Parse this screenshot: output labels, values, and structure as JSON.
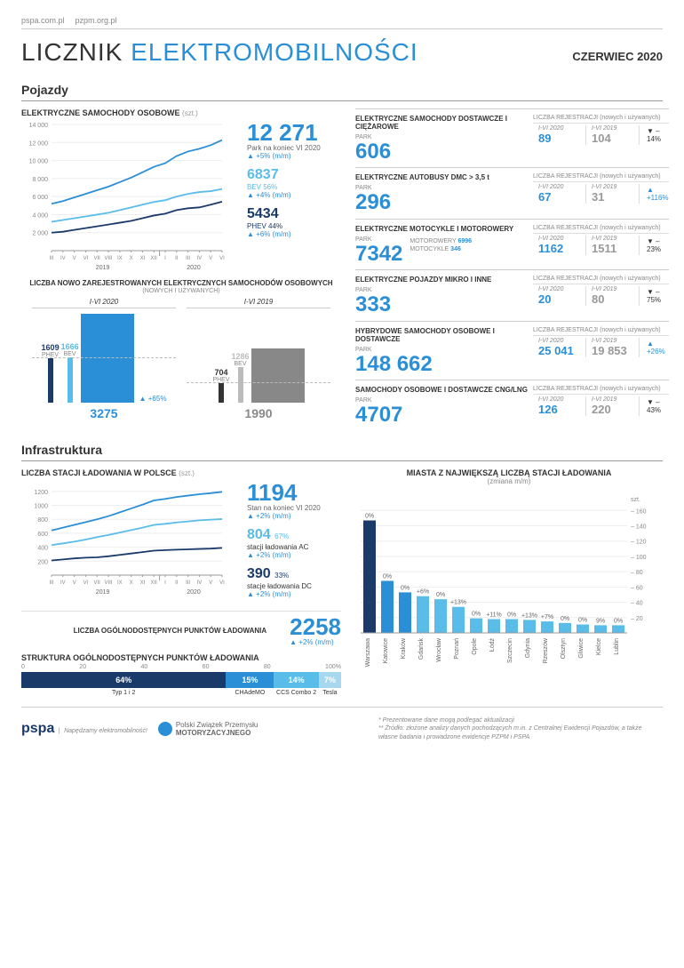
{
  "links": {
    "a": "pspa.com.pl",
    "b": "pzpm.org.pl"
  },
  "title": {
    "a": "LICZNIK",
    "b": "ELEKTROMOBILNOŚCI"
  },
  "date": "CZERWIEC 2020",
  "sec_vehicles": "Pojazdy",
  "sec_infra": "Infrastruktura",
  "pc": {
    "title": "ELEKTRYCZNE SAMOCHODY OSOBOWE",
    "unit": "(szt.)",
    "total": {
      "val": "12 271",
      "sub": "Park na koniec VI 2020",
      "chg": "▲ +5% (m/m)"
    },
    "bev": {
      "val": "6837",
      "sub": "BEV 56%",
      "chg": "▲ +4% (m/m)",
      "color": "#5abce8"
    },
    "phev": {
      "val": "5434",
      "sub": "PHEV 44%",
      "chg": "▲ +6% (m/m)",
      "color": "#1a3a6a"
    },
    "total_color": "#2a8fd6",
    "y_ticks": [
      "14 000",
      "12 000",
      "10 000",
      "8 000",
      "6 000",
      "4 000",
      "2 000"
    ],
    "x_ticks": [
      "III",
      "IV",
      "V",
      "VI",
      "VII",
      "VIII",
      "IX",
      "X",
      "XI",
      "XII",
      "I",
      "II",
      "III",
      "IV",
      "V",
      "VI"
    ],
    "x_years": [
      "2019",
      "2020"
    ],
    "series": {
      "total": [
        5200,
        5500,
        5900,
        6300,
        6700,
        7100,
        7600,
        8100,
        8700,
        9300,
        9700,
        10500,
        11000,
        11300,
        11700,
        12271
      ],
      "bev": [
        3200,
        3400,
        3600,
        3800,
        4000,
        4200,
        4500,
        4800,
        5100,
        5400,
        5600,
        6000,
        6300,
        6500,
        6600,
        6837
      ],
      "phev": [
        2000,
        2100,
        2300,
        2500,
        2700,
        2900,
        3100,
        3300,
        3600,
        3900,
        4100,
        4500,
        4700,
        4800,
        5100,
        5434
      ]
    },
    "y_max": 14000
  },
  "reg": {
    "title": "LICZBA NOWO ZAREJESTROWANYCH ELEKTRYCZNYCH SAMOCHODÓW OSOBOWYCH",
    "sub": "(NOWYCH I UŻYWANYCH)",
    "y2020": {
      "lbl": "I-VI 2020",
      "phev": {
        "v": "1609",
        "lbl": "PHEV",
        "c": "#1a3a6a"
      },
      "bev": {
        "v": "1666",
        "lbl": "BEV",
        "c": "#5abce8"
      },
      "total": {
        "v": "3275",
        "c": "#2a8fd6"
      },
      "chg": "▲ +65흮"
    },
    "y2019": {
      "lbl": "I-VI 2019",
      "phev": {
        "v": "704",
        "lbl": "PHEV",
        "c": "#333"
      },
      "bev": {
        "v": "1286",
        "lbl": "BEV",
        "c": "#bbb"
      },
      "total": {
        "v": "1990",
        "c": "#888"
      }
    }
  },
  "cats": [
    {
      "title": "ELEKTRYCZNE SAMOCHODY DOSTAWCZE I CIĘŻAROWE",
      "park": "606",
      "r20": "89",
      "r19": "104",
      "chg": "▼ –14%",
      "dir": "dn"
    },
    {
      "title": "ELEKTRYCZNE AUTOBUSY DMC > 3,5 t",
      "park": "296",
      "r20": "67",
      "r19": "31",
      "chg": "▲ +116%",
      "dir": "up"
    },
    {
      "title": "ELEKTRYCZNE MOTOCYKLE I MOTOROWERY",
      "park": "7342",
      "r20": "1162",
      "r19": "1511",
      "chg": "▼ –23%",
      "dir": "dn",
      "extra": [
        {
          "l": "MOTOROWERY",
          "v": "6996"
        },
        {
          "l": "MOTOCYKLE",
          "v": "346"
        }
      ]
    },
    {
      "title": "ELEKTRYCZNE POJAZDY MIKRO I INNE",
      "park": "333",
      "r20": "20",
      "r19": "80",
      "chg": "▼ –75%",
      "dir": "dn"
    },
    {
      "title": "HYBRYDOWE SAMOCHODY OSOBOWE I DOSTAWCZE",
      "park": "148 662",
      "r20": "25 041",
      "r19": "19 853",
      "chg": "▲ +26%",
      "dir": "up"
    },
    {
      "title": "SAMOCHODY OSOBOWE I DOSTAWCZE CNG/LNG",
      "park": "4707",
      "r20": "126",
      "r19": "220",
      "chg": "▼ –43%",
      "dir": "dn"
    }
  ],
  "cat_lbls": {
    "park": "PARK",
    "reg": "LICZBA REJESTRACJI (nowych i używanych)",
    "y20": "I-VI 2020",
    "y19": "I-VI 2019"
  },
  "ic": {
    "title": "LICZBA STACJI ŁADOWANIA W POLSCE",
    "unit": "(szt.)",
    "total": {
      "val": "1194",
      "sub": "Stan na koniec VI 2020",
      "chg": "▲ +2% (m/m)",
      "color": "#2a8fd6"
    },
    "ac": {
      "val": "804",
      "pct": "67%",
      "sub": "stacji ładowania AC",
      "chg": "▲ +2% (m/m)",
      "color": "#5abce8"
    },
    "dc": {
      "val": "390",
      "pct": "33%",
      "sub": "stacje ładowania DC",
      "chg": "▲ +2% (m/m)",
      "color": "#1a3a6a"
    },
    "y_ticks": [
      "1200",
      "1000",
      "800",
      "600",
      "400",
      "200"
    ],
    "series": {
      "total": [
        640,
        680,
        720,
        760,
        800,
        845,
        900,
        955,
        1010,
        1070,
        1093,
        1120,
        1140,
        1160,
        1175,
        1194
      ],
      "ac": [
        430,
        455,
        480,
        510,
        545,
        575,
        610,
        645,
        680,
        720,
        735,
        755,
        770,
        785,
        795,
        804
      ],
      "dc": [
        210,
        225,
        240,
        250,
        255,
        270,
        290,
        310,
        330,
        350,
        358,
        365,
        370,
        375,
        380,
        390
      ]
    },
    "y_max": 1300,
    "points_title": "LICZBA OGÓLNODOSTĘPNYCH PUNKTÓW ŁADOWANIA",
    "points_val": "2258",
    "points_chg": "▲ +2% (m/m)"
  },
  "struct": {
    "title": "STRUKTURA OGÓLNODOSTĘPNYCH PUNKTÓW ŁADOWANIA",
    "scale": [
      "0",
      "20",
      "40",
      "60",
      "80",
      "100%"
    ],
    "segs": [
      {
        "pct": 64,
        "lbl": "64%",
        "name": "Typ 1 i 2",
        "c": "#1a3a6a"
      },
      {
        "pct": 15,
        "lbl": "15%",
        "name": "CHAdeMO",
        "c": "#2a8fd6"
      },
      {
        "pct": 14,
        "lbl": "14%",
        "name": "CCS Combo 2",
        "c": "#5abce8"
      },
      {
        "pct": 7,
        "lbl": "7%",
        "name": "Tesla",
        "c": "#a8d8ef"
      }
    ]
  },
  "cities": {
    "title": "MIASTA Z NAJWIĘKSZĄ LICZBĄ STACJI ŁADOWANIA",
    "sub": "(zmiana m/m)",
    "unit": "szt.",
    "y_ticks": [
      160,
      140,
      120,
      100,
      80,
      60,
      40,
      20
    ],
    "y_max": 165,
    "data": [
      {
        "n": "Warszawa",
        "v": 147,
        "chg": "0%",
        "c": "#1a3a6a"
      },
      {
        "n": "Katowice",
        "v": 68,
        "chg": "0%",
        "c": "#2a8fd6"
      },
      {
        "n": "Kraków",
        "v": 53,
        "chg": "0%",
        "c": "#2a8fd6"
      },
      {
        "n": "Gdańsk",
        "v": 48,
        "chg": "+6%",
        "c": "#5abce8"
      },
      {
        "n": "Wrocław",
        "v": 44,
        "chg": "0%",
        "c": "#5abce8"
      },
      {
        "n": "Poznań",
        "v": 34,
        "chg": "+13%",
        "c": "#5abce8"
      },
      {
        "n": "Opole",
        "v": 19,
        "chg": "0%",
        "c": "#5abce8"
      },
      {
        "n": "Łódź",
        "v": 18,
        "chg": "+11%",
        "c": "#5abce8"
      },
      {
        "n": "Szczecin",
        "v": 18,
        "chg": "0%",
        "c": "#5abce8"
      },
      {
        "n": "Gdynia",
        "v": 17,
        "chg": "+13%",
        "c": "#5abce8"
      },
      {
        "n": "Rzeszów",
        "v": 15,
        "chg": "+7%",
        "c": "#5abce8"
      },
      {
        "n": "Olsztyn",
        "v": 13,
        "chg": "0%",
        "c": "#5abce8"
      },
      {
        "n": "Gliwice",
        "v": 11,
        "chg": "0%",
        "c": "#5abce8"
      },
      {
        "n": "Kielce",
        "v": 10,
        "chg": "9%",
        "c": "#5abce8"
      },
      {
        "n": "Lublin",
        "v": 10,
        "chg": "0%",
        "c": "#5abce8"
      }
    ]
  },
  "footer": {
    "logo1": "pspa",
    "logo1_sub": "Napędzamy elektromobilność!",
    "logo2a": "Polski Związek Przemysłu",
    "logo2b": "MOTORYZACYJNEGO",
    "note1": "* Prezentowane dane mogą podlegać aktualizacji",
    "note2": "** Źródło: złożone analizy danych pochodzących m.in. z Centralnej Ewidencji Pojazdów, a także własne badania i prowadzone ewidencje PZPM i PSPA"
  }
}
